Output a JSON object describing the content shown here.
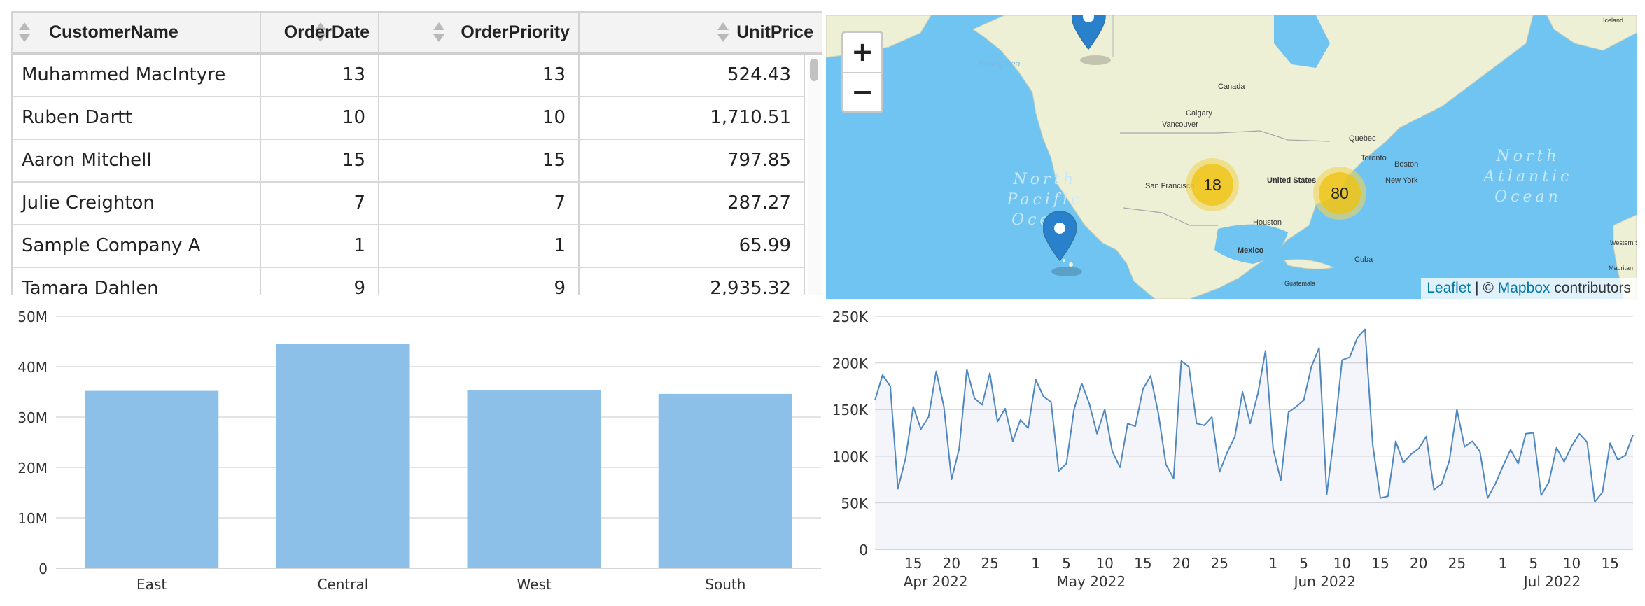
{
  "table": {
    "columns": [
      {
        "key": "name",
        "label": "CustomerName",
        "align": "left"
      },
      {
        "key": "order_date",
        "label": "OrderDate",
        "align": "right"
      },
      {
        "key": "order_priority",
        "label": "OrderPriority",
        "align": "right"
      },
      {
        "key": "unit_price",
        "label": "UnitPrice",
        "align": "right"
      }
    ],
    "rows": [
      {
        "name": "Muhammed MacIntyre",
        "order_date": "13",
        "order_priority": "13",
        "unit_price": "524.43"
      },
      {
        "name": "Ruben Dartt",
        "order_date": "10",
        "order_priority": "10",
        "unit_price": "1,710.51"
      },
      {
        "name": "Aaron Mitchell",
        "order_date": "15",
        "order_priority": "15",
        "unit_price": "797.85"
      },
      {
        "name": "Julie Creighton",
        "order_date": "7",
        "order_priority": "7",
        "unit_price": "287.27"
      },
      {
        "name": "Sample Company A",
        "order_date": "1",
        "order_priority": "1",
        "unit_price": "65.99"
      },
      {
        "name": "Tamara Dahlen",
        "order_date": "9",
        "order_priority": "9",
        "unit_price": "2,935.32"
      }
    ]
  },
  "map": {
    "zoom_in_label": "+",
    "zoom_out_label": "−",
    "clusters": [
      {
        "count": "18"
      },
      {
        "count": "80"
      }
    ],
    "place_labels": [
      "Bering Sea",
      "Canada",
      "Calgary",
      "Vancouver",
      "Quebec",
      "Toronto",
      "Boston",
      "New York",
      "San Francisco",
      "United States",
      "Houston",
      "Mexico",
      "Cuba",
      "Guatemala",
      "Western Sahara",
      "Mauritan",
      "Iceland"
    ],
    "ocean_labels": [
      {
        "line1": "North",
        "line2": "Pacific",
        "line3": "Ocean"
      },
      {
        "line1": "North",
        "line2": "Atlantic",
        "line3": "Ocean"
      }
    ],
    "attribution": {
      "leaflet": "Leaflet",
      "sep": " | © ",
      "mapbox": "Mapbox",
      "rest": " contributors"
    },
    "colors": {
      "water": "#70c4f2",
      "land": "#eef0d6",
      "marker": "#2a81cb",
      "cluster": "#f0c20c"
    }
  },
  "chart_data": [
    {
      "type": "bar",
      "categories": [
        "East",
        "Central",
        "West",
        "South"
      ],
      "values": [
        35.2,
        44.5,
        35.3,
        34.6
      ],
      "value_unit": "M",
      "ylim": [
        0,
        50
      ],
      "yticks": [
        "0",
        "10M",
        "20M",
        "30M",
        "40M",
        "50M"
      ],
      "grid": true,
      "color": "#8cc0e8"
    },
    {
      "type": "area",
      "x_start": "2022-04-10",
      "values": [
        160000,
        187000,
        175000,
        65000,
        98000,
        153000,
        129000,
        142000,
        191000,
        153000,
        75000,
        108000,
        193000,
        162000,
        155000,
        189000,
        137000,
        151000,
        116000,
        139000,
        130000,
        182000,
        164000,
        158000,
        84000,
        92000,
        150000,
        178000,
        156000,
        124000,
        150000,
        105000,
        88000,
        135000,
        132000,
        172000,
        186000,
        146000,
        91000,
        76000,
        202000,
        196000,
        135000,
        133000,
        142000,
        83000,
        104000,
        121000,
        169000,
        135000,
        167000,
        213000,
        108000,
        74000,
        147000,
        153000,
        160000,
        196000,
        216000,
        59000,
        125000,
        203000,
        206000,
        227000,
        236000,
        112000,
        55000,
        57000,
        116000,
        93000,
        102000,
        108000,
        121000,
        64000,
        70000,
        95000,
        150000,
        110000,
        116000,
        105000,
        55000,
        70000,
        89000,
        107000,
        92000,
        124000,
        125000,
        58000,
        72000,
        109000,
        94000,
        111000,
        124000,
        115000,
        51000,
        61000,
        114000,
        96000,
        101000,
        123000
      ],
      "ylim": [
        0,
        250000
      ],
      "yticks": [
        "0",
        "50K",
        "100K",
        "150K",
        "200K",
        "250K"
      ],
      "xticks": [
        {
          "date": "2022-04-15",
          "label": "15"
        },
        {
          "date": "2022-04-20",
          "label": "20"
        },
        {
          "date": "2022-04-25",
          "label": "25"
        },
        {
          "date": "2022-05-01",
          "label": "1"
        },
        {
          "date": "2022-05-05",
          "label": "5"
        },
        {
          "date": "2022-05-10",
          "label": "10"
        },
        {
          "date": "2022-05-15",
          "label": "15"
        },
        {
          "date": "2022-05-20",
          "label": "20"
        },
        {
          "date": "2022-05-25",
          "label": "25"
        },
        {
          "date": "2022-06-01",
          "label": "1"
        },
        {
          "date": "2022-06-05",
          "label": "5"
        },
        {
          "date": "2022-06-10",
          "label": "10"
        },
        {
          "date": "2022-06-15",
          "label": "15"
        },
        {
          "date": "2022-06-20",
          "label": "20"
        },
        {
          "date": "2022-06-25",
          "label": "25"
        },
        {
          "date": "2022-07-01",
          "label": "1"
        },
        {
          "date": "2022-07-05",
          "label": "5"
        },
        {
          "date": "2022-07-10",
          "label": "10"
        },
        {
          "date": "2022-07-15",
          "label": "15"
        }
      ],
      "month_labels": [
        {
          "date": "2022-04-15",
          "label": "Apr 2022"
        },
        {
          "date": "2022-05-05",
          "label": "May 2022"
        },
        {
          "date": "2022-06-05",
          "label": "Jun 2022"
        },
        {
          "date": "2022-07-05",
          "label": "Jul 2022"
        }
      ],
      "grid": true,
      "color": "#4f88c1"
    }
  ]
}
